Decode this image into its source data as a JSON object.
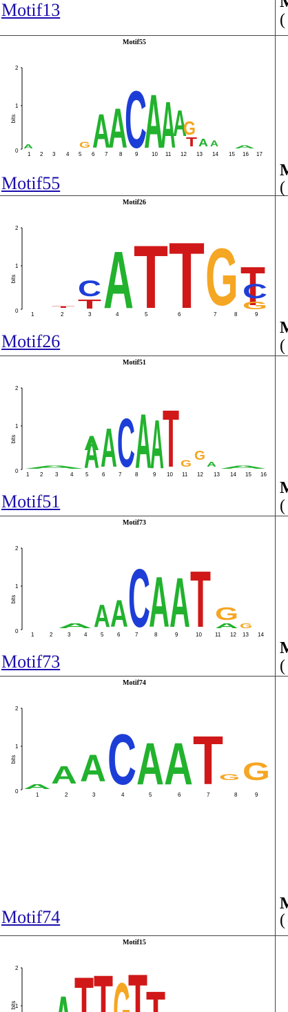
{
  "rows": [
    {
      "link": "Motif13",
      "right_top": "M",
      "right_bottom": "("
    },
    {
      "link": "Motif55",
      "logo_title": "Motif55",
      "right_top": "M",
      "right_bottom": "("
    },
    {
      "link": "Motif26",
      "logo_title": "Motif26",
      "right_top": "M",
      "right_bottom": "("
    },
    {
      "link": "Motif51",
      "logo_title": "Motif51",
      "right_top": "M",
      "right_bottom": "("
    },
    {
      "link": "Motif73",
      "logo_title": "Motif73",
      "right_top": "M",
      "right_bottom": "("
    },
    {
      "link": "Motif74",
      "logo_title": "Motif74",
      "right_top": "M",
      "right_bottom": "("
    },
    {
      "logo_title": "Motif15"
    }
  ],
  "axis": {
    "ylabel": "bits",
    "ticks": [
      "2",
      "1",
      "0"
    ]
  },
  "colors": {
    "A": "#22b22e",
    "C": "#1d3ed6",
    "G": "#f5a623",
    "T": "#d01818",
    "link": "#1a0dab"
  }
}
